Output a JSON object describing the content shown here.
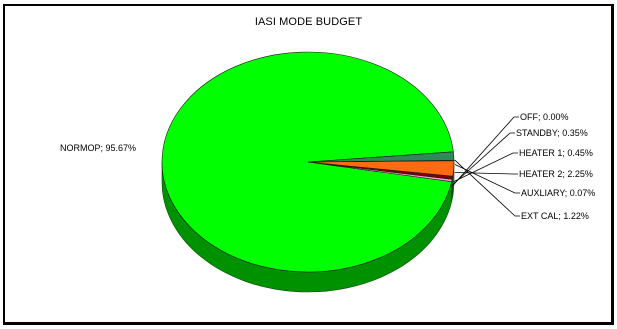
{
  "chart_data": {
    "type": "pie",
    "title": "IASI MODE BUDGET",
    "slices": [
      {
        "label": "NORMOP; 95.67%",
        "name": "NORMOP",
        "value": 95.67,
        "color": "#00ff00",
        "side_color": "#009100"
      },
      {
        "label": "OFF; 0.00%",
        "name": "OFF",
        "value": 0.0,
        "color": "#000080",
        "side_color": "#000050"
      },
      {
        "label": "STANDBY; 0.35%",
        "name": "STANDBY",
        "value": 0.35,
        "color": "#ff99cc",
        "side_color": "#b0607f"
      },
      {
        "label": "HEATER 1; 0.45%",
        "name": "HEATER 1",
        "value": 0.45,
        "color": "#800000",
        "side_color": "#500000"
      },
      {
        "label": "HEATER 2; 2.25%",
        "name": "HEATER 2",
        "value": 2.25,
        "color": "#ff6a13",
        "side_color": "#b04a0c"
      },
      {
        "label": "AUXLIARY; 0.07%",
        "name": "AUXLIARY",
        "value": 0.07,
        "color": "#990066",
        "side_color": "#600040"
      },
      {
        "label": "EXT CAL; 1.22%",
        "name": "EXT CAL",
        "value": 1.22,
        "color": "#2e8b57",
        "side_color": "#1c5a38"
      }
    ],
    "legend": "none"
  }
}
